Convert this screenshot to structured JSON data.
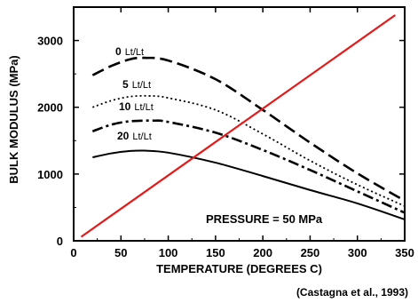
{
  "chart_data": {
    "type": "line",
    "title": "",
    "xlabel": "TEMPERATURE  (DEGREES  C)",
    "ylabel": "BULK MODULUS  (MPa)",
    "xlim": [
      0,
      350
    ],
    "ylim": [
      0,
      3500
    ],
    "xticks": [
      0,
      50,
      100,
      150,
      200,
      250,
      300,
      350
    ],
    "yticks": [
      0,
      1000,
      2000,
      3000
    ],
    "grid": false,
    "legend": "none",
    "annotation": "PRESSURE  =  50  MPa",
    "credit": "(Castagna et al., 1993)",
    "series": [
      {
        "label_num": "0",
        "label_unit": "Lt/Lt",
        "style": "dashed",
        "color": "#000000",
        "x": [
          20,
          40,
          60,
          75,
          100,
          150,
          200,
          250,
          300,
          350
        ],
        "y": [
          2480,
          2620,
          2720,
          2740,
          2700,
          2420,
          1960,
          1470,
          1010,
          600
        ]
      },
      {
        "label_num": "5",
        "label_unit": "Lt/Lt",
        "style": "dotted",
        "color": "#000000",
        "x": [
          20,
          40,
          60,
          80,
          100,
          150,
          200,
          250,
          300,
          350
        ],
        "y": [
          2000,
          2100,
          2160,
          2170,
          2140,
          1960,
          1600,
          1200,
          840,
          520
        ]
      },
      {
        "label_num": "10",
        "label_unit": "Lt/Lt",
        "style": "dashdot",
        "color": "#000000",
        "x": [
          20,
          40,
          60,
          85,
          100,
          150,
          200,
          250,
          300,
          350
        ],
        "y": [
          1640,
          1740,
          1790,
          1800,
          1780,
          1620,
          1360,
          1060,
          740,
          420
        ]
      },
      {
        "label_num": "20",
        "label_unit": "Lt/Lt",
        "style": "solid",
        "color": "#000000",
        "x": [
          20,
          40,
          60,
          75,
          100,
          150,
          200,
          250,
          300,
          350
        ],
        "y": [
          1250,
          1310,
          1345,
          1350,
          1320,
          1170,
          970,
          760,
          560,
          320
        ]
      },
      {
        "label_num": "",
        "label_unit": "",
        "style": "solid",
        "color": "#e41a1a",
        "x": [
          8,
          340
        ],
        "y": [
          60,
          3380
        ]
      }
    ]
  }
}
